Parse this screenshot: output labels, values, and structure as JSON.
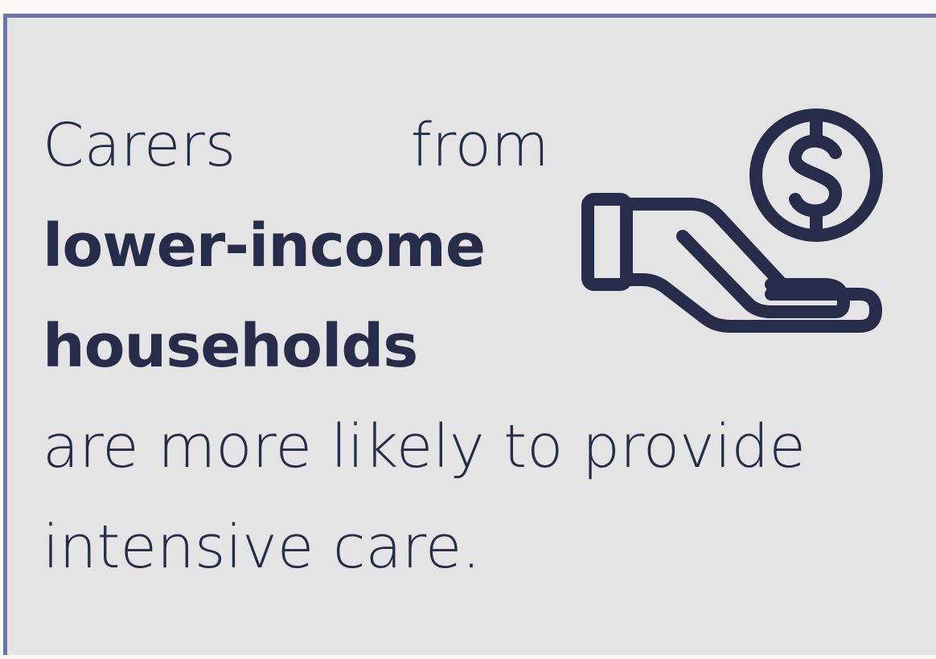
{
  "callout": {
    "intro": "Carers from",
    "highlight": [
      "lower-income",
      "households"
    ],
    "rest": [
      "are more likely to provide",
      "intensive care."
    ]
  }
}
